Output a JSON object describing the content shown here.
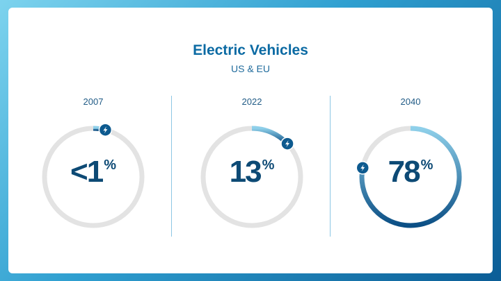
{
  "title": "Electric Vehicles",
  "subtitle": "US & EU",
  "chart_data": {
    "type": "gauge",
    "title": "Electric Vehicles",
    "subtitle": "US & EU",
    "unit": "%",
    "categories": [
      "2007",
      "2022",
      "2040"
    ],
    "values": [
      1,
      13,
      78
    ],
    "display": [
      "<1",
      "13",
      "78"
    ],
    "range": [
      0,
      100
    ]
  },
  "colors": {
    "track": "#e3e3e3",
    "progress_start": "#8fd0ea",
    "progress_end": "#0b4f85",
    "marker": "#0d5a8f",
    "value_text": "#0d4a75"
  },
  "icons": {
    "marker": "lightning-bolt-icon"
  }
}
